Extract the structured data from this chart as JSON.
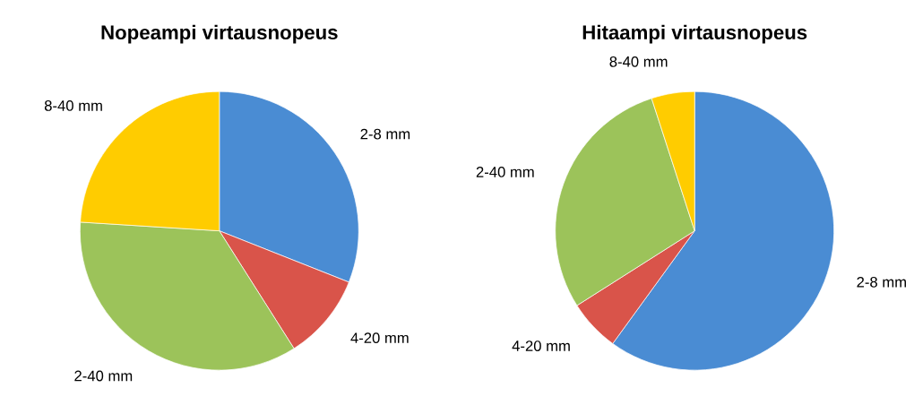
{
  "chart_data": [
    {
      "type": "pie",
      "title": "Nopeampi virtausnopeus",
      "categories": [
        "2-8 mm",
        "4-20 mm",
        "2-40 mm",
        "8-40 mm"
      ],
      "values": [
        31,
        10,
        35,
        24
      ],
      "colors": [
        "#4a8cd3",
        "#d9544a",
        "#9cc35a",
        "#ffcc00"
      ]
    },
    {
      "type": "pie",
      "title": "Hitaampi virtausnopeus",
      "categories": [
        "2-8 mm",
        "4-20 mm",
        "2-40 mm",
        "8-40 mm"
      ],
      "values": [
        60,
        6,
        29,
        5
      ],
      "colors": [
        "#4a8cd3",
        "#d9544a",
        "#9cc35a",
        "#ffcc00"
      ]
    }
  ]
}
